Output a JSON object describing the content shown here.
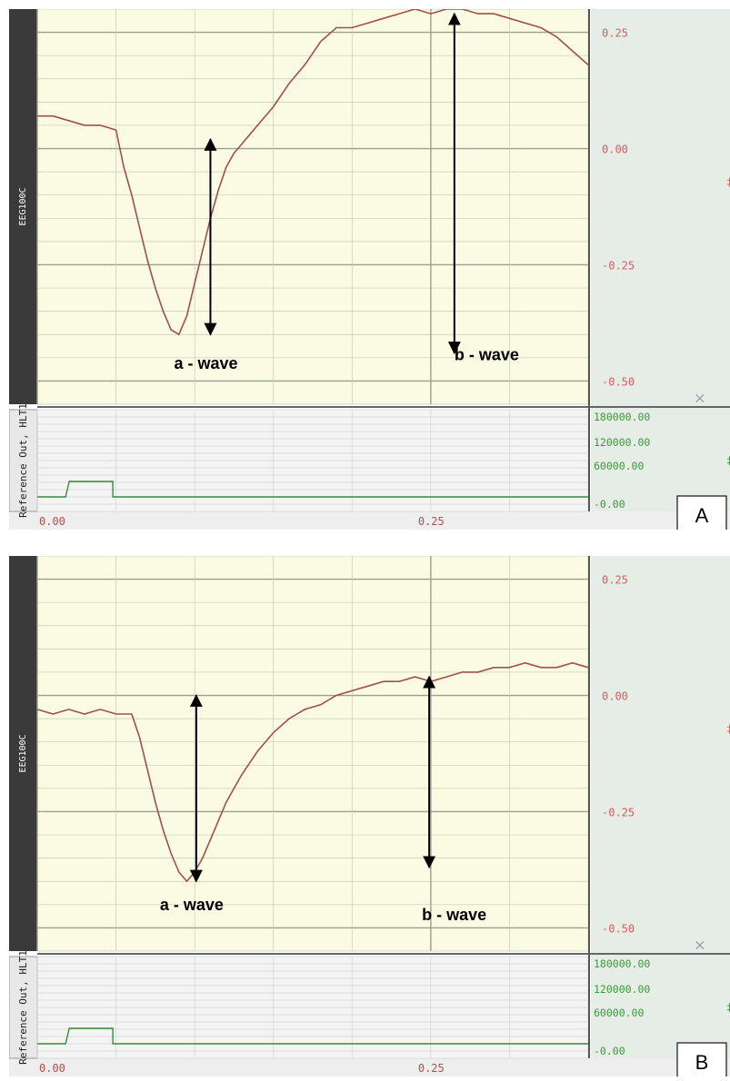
{
  "colors": {
    "plot_bg": "#fbfbe4",
    "side_bg": "#e6ece6",
    "ref_bg": "#f4f4f4",
    "channel_bar": "#3a3a3a",
    "trace": "#a0504a",
    "eeg_tick_labels": "#d06060",
    "ref_tick_labels": "#3a9a3a",
    "ref_trace": "#3a8a3a",
    "grid": "#c4ccb4",
    "arrow": "#000000"
  },
  "chart_data": [
    {
      "type": "line",
      "panel_label": "A",
      "eeg_channel_label": "EEG100C",
      "ref_channel_label": "Reference Out, HLT1",
      "xlim": [
        0.0,
        0.35
      ],
      "ylim": [
        -0.55,
        0.3
      ],
      "x_tick_labels": [
        "0.00",
        "0.25"
      ],
      "eeg_tick_labels": [
        "0.25",
        "0.00",
        "-0.25",
        "-0.50"
      ],
      "eeg_tick_values": [
        0.25,
        0.0,
        -0.25,
        -0.5
      ],
      "ref_tick_labels": [
        "180000.00",
        "120000.00",
        "60000.00",
        "-0.00"
      ],
      "annotations": [
        "a - wave",
        "b - wave"
      ],
      "series": [
        {
          "x": [
            0.0,
            0.01,
            0.02,
            0.03,
            0.04,
            0.05,
            0.055,
            0.06,
            0.065,
            0.07,
            0.075,
            0.08,
            0.085,
            0.09,
            0.095,
            0.1,
            0.105,
            0.11,
            0.115,
            0.12,
            0.125,
            0.13,
            0.135,
            0.14,
            0.15,
            0.16,
            0.17,
            0.18,
            0.19,
            0.2,
            0.21,
            0.22,
            0.23,
            0.24,
            0.25,
            0.26,
            0.27,
            0.28,
            0.29,
            0.3,
            0.31,
            0.32,
            0.33,
            0.34,
            0.35
          ],
          "y": [
            0.07,
            0.07,
            0.06,
            0.05,
            0.05,
            0.04,
            -0.04,
            -0.1,
            -0.17,
            -0.24,
            -0.3,
            -0.35,
            -0.39,
            -0.4,
            -0.36,
            -0.29,
            -0.22,
            -0.15,
            -0.09,
            -0.04,
            -0.01,
            0.01,
            0.03,
            0.05,
            0.09,
            0.14,
            0.18,
            0.23,
            0.26,
            0.26,
            0.27,
            0.28,
            0.29,
            0.3,
            0.29,
            0.3,
            0.3,
            0.29,
            0.29,
            0.28,
            0.27,
            0.26,
            0.24,
            0.21,
            0.18
          ]
        }
      ],
      "ref_pulse": {
        "start": 0.018,
        "end": 0.048,
        "level": 60000
      },
      "a_wave": {
        "x": 0.11,
        "from": -0.4,
        "to": 0.02
      },
      "b_wave": {
        "x": 0.265,
        "from": -0.44,
        "to": 0.29
      }
    },
    {
      "type": "line",
      "panel_label": "B",
      "eeg_channel_label": "EEG100C",
      "ref_channel_label": "Reference Out, HLT1",
      "xlim": [
        0.0,
        0.35
      ],
      "ylim": [
        -0.55,
        0.3
      ],
      "x_tick_labels": [
        "0.00",
        "0.25"
      ],
      "eeg_tick_labels": [
        "0.25",
        "0.00",
        "-0.25",
        "-0.50"
      ],
      "eeg_tick_values": [
        0.25,
        0.0,
        -0.25,
        -0.5
      ],
      "ref_tick_labels": [
        "180000.00",
        "120000.00",
        "60000.00",
        "-0.00"
      ],
      "annotations": [
        "a - wave",
        "b - wave"
      ],
      "series": [
        {
          "x": [
            0.0,
            0.01,
            0.02,
            0.03,
            0.04,
            0.05,
            0.06,
            0.065,
            0.07,
            0.075,
            0.08,
            0.085,
            0.09,
            0.095,
            0.1,
            0.105,
            0.11,
            0.115,
            0.12,
            0.125,
            0.13,
            0.14,
            0.15,
            0.16,
            0.17,
            0.18,
            0.19,
            0.2,
            0.21,
            0.22,
            0.23,
            0.24,
            0.25,
            0.26,
            0.27,
            0.28,
            0.29,
            0.3,
            0.31,
            0.32,
            0.33,
            0.34,
            0.35
          ],
          "y": [
            -0.03,
            -0.04,
            -0.03,
            -0.04,
            -0.03,
            -0.04,
            -0.04,
            -0.09,
            -0.16,
            -0.23,
            -0.29,
            -0.34,
            -0.38,
            -0.4,
            -0.38,
            -0.35,
            -0.31,
            -0.27,
            -0.23,
            -0.2,
            -0.17,
            -0.12,
            -0.08,
            -0.05,
            -0.03,
            -0.02,
            0.0,
            0.01,
            0.02,
            0.03,
            0.03,
            0.04,
            0.03,
            0.04,
            0.05,
            0.05,
            0.06,
            0.06,
            0.07,
            0.06,
            0.06,
            0.07,
            0.06
          ]
        }
      ],
      "ref_pulse": {
        "start": 0.018,
        "end": 0.048,
        "level": 60000
      },
      "a_wave": {
        "x": 0.101,
        "from": -0.4,
        "to": 0.0
      },
      "b_wave": {
        "x": 0.249,
        "from": -0.37,
        "to": 0.04
      }
    }
  ]
}
